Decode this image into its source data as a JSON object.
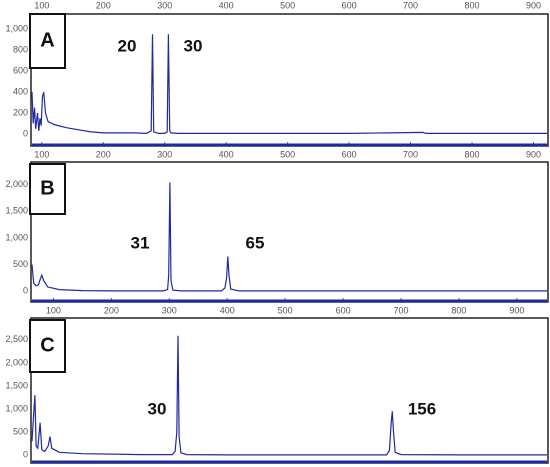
{
  "chart_data": [
    {
      "type": "line",
      "panel_label": "A",
      "annotations": [
        "20",
        "30"
      ],
      "xlim": [
        84,
        922
      ],
      "xticks": [
        100,
        200,
        300,
        400,
        500,
        600,
        700,
        800,
        900
      ],
      "ylim": [
        -105,
        1133
      ],
      "yticks": [
        0,
        200,
        400,
        600,
        800,
        {
          "value": 1000,
          "label": "1,000"
        }
      ],
      "series": [
        {
          "color": "#1f2a9e",
          "x": [
            84,
            86,
            88,
            90,
            93,
            95,
            97,
            99,
            101,
            103,
            106,
            110,
            120,
            140,
            160,
            180,
            200,
            250,
            270,
            278,
            280,
            282,
            290,
            300,
            304,
            306,
            308,
            310,
            320,
            400,
            600,
            720,
            725,
            800,
            922
          ],
          "values": [
            400,
            100,
            250,
            50,
            200,
            30,
            150,
            80,
            350,
            400,
            200,
            120,
            90,
            60,
            40,
            20,
            10,
            10,
            5,
            30,
            950,
            20,
            5,
            5,
            20,
            950,
            30,
            10,
            5,
            5,
            5,
            15,
            5,
            5,
            5
          ]
        }
      ]
    },
    {
      "type": "line",
      "panel_label": "B",
      "annotations": [
        "31",
        "65"
      ],
      "xlim": [
        63,
        952
      ],
      "xticks": [
        100,
        200,
        300,
        400,
        500,
        600,
        700,
        800,
        900
      ],
      "ylim": [
        -185,
        2407
      ],
      "yticks": [
        0,
        500,
        {
          "value": 1000,
          "label": "1,000"
        },
        {
          "value": 1500,
          "label": "1,500"
        },
        {
          "value": 2000,
          "label": "2,000"
        }
      ],
      "series": [
        {
          "color": "#1f2a9e",
          "x": [
            63,
            66,
            70,
            74,
            78,
            80,
            83,
            90,
            110,
            150,
            200,
            290,
            297,
            299,
            301,
            303,
            306,
            320,
            390,
            396,
            399,
            401,
            403,
            406,
            420,
            600,
            800,
            952
          ],
          "values": [
            500,
            150,
            100,
            120,
            250,
            300,
            200,
            80,
            30,
            10,
            5,
            5,
            30,
            300,
            2040,
            200,
            20,
            5,
            5,
            60,
            250,
            650,
            300,
            40,
            5,
            5,
            5,
            5
          ]
        }
      ]
    },
    {
      "type": "line",
      "panel_label": "C",
      "annotations": [
        "30",
        "156"
      ],
      "xlim": [
        63,
        952
      ],
      "ylim": [
        -150,
        2952
      ],
      "yticks": [
        0,
        500,
        {
          "value": 1000,
          "label": "1,000"
        },
        {
          "value": 1500,
          "label": "1,500"
        },
        {
          "value": 2000,
          "label": "2,000"
        },
        {
          "value": 2500,
          "label": "2,500"
        }
      ],
      "series": [
        {
          "color": "#1f2a9e",
          "x": [
            63,
            66,
            68,
            70,
            73,
            77,
            80,
            85,
            91,
            94,
            97,
            110,
            150,
            250,
            305,
            310,
            313,
            315,
            317,
            320,
            330,
            400,
            600,
            675,
            680,
            683,
            685,
            687,
            690,
            700,
            800,
            952
          ],
          "values": [
            300,
            900,
            1300,
            200,
            150,
            700,
            120,
            80,
            200,
            400,
            150,
            60,
            30,
            10,
            10,
            80,
            500,
            2590,
            400,
            50,
            10,
            5,
            5,
            5,
            100,
            700,
            950,
            500,
            60,
            10,
            5,
            5
          ]
        }
      ]
    }
  ]
}
